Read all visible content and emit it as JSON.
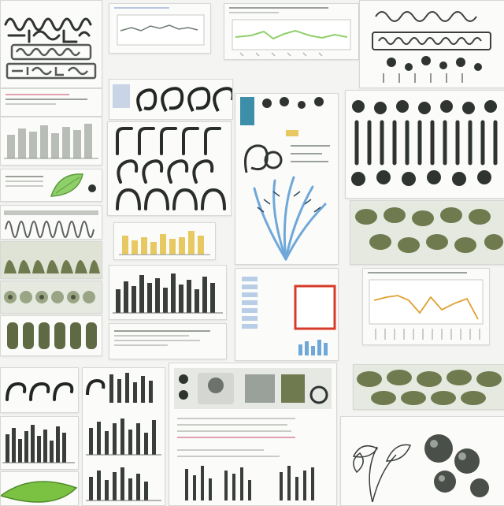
{
  "title": "",
  "colors": {
    "ink": "#2f3430",
    "olive": "#6f7a4e",
    "sage": "#9aa585",
    "leaf_green": "#7cc242",
    "chart_green": "#8fcf6a",
    "chart_orange": "#e0a030",
    "chart_yellow": "#e8c860",
    "chart_blue": "#6fa8d8",
    "frame_red": "#d83a2a",
    "teal": "#3d8ea8"
  },
  "icons": [
    "line-chart-thumbnail",
    "bar-chart-thumbnail",
    "curl-glyph-icon",
    "bead-ornament-icon",
    "botanical-sketch",
    "coral-illustration",
    "leaf-illustration",
    "pattern-tile"
  ]
}
